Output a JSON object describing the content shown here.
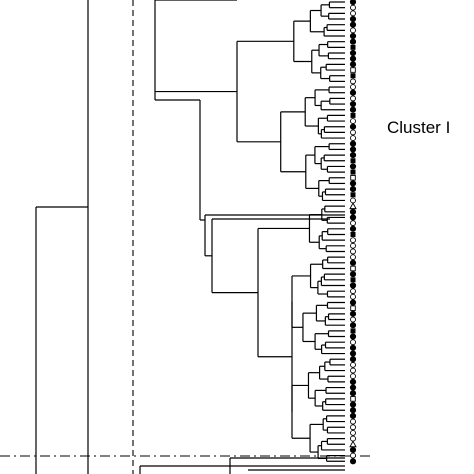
{
  "figure": {
    "type": "dendrogram",
    "cluster_label": "Cluster I",
    "leaf_markers": [
      "filled-circle",
      "open-circle",
      "open-circle",
      "filled-circle",
      "filled-circle",
      "open-circle",
      "filled-circle",
      "filled-circle",
      "filled-square",
      "filled-circle",
      "filled-circle",
      "filled-circle",
      "open-square",
      "filled-square",
      "open-circle",
      "open-circle",
      "filled-circle",
      "open-circle",
      "filled-circle",
      "filled-circle",
      "filled-square",
      "open-circle",
      "filled-circle",
      "open-circle",
      "open-circle",
      "filled-circle",
      "filled-circle",
      "filled-circle",
      "filled-square",
      "filled-circle",
      "filled-square",
      "open-square",
      "filled-circle",
      "filled-circle",
      "filled-square",
      "open-circle",
      "open-triangle",
      "filled-circle",
      "filled-circle",
      "open-circle",
      "filled-circle",
      "filled-square",
      "open-circle",
      "open-circle",
      "open-circle",
      "open-circle",
      "filled-circle",
      "open-square",
      "filled-circle",
      "filled-square",
      "filled-circle",
      "open-circle",
      "open-circle",
      "filled-circle",
      "open-square",
      "filled-circle",
      "open-circle",
      "filled-circle",
      "filled-square",
      "filled-circle",
      "open-circle",
      "filled-circle",
      "filled-circle",
      "filled-circle",
      "open-circle",
      "open-circle",
      "open-circle",
      "filled-circle",
      "filled-circle",
      "filled-circle",
      "open-square",
      "filled-circle",
      "filled-circle",
      "filled-circle",
      "open-circle",
      "open-circle",
      "open-circle",
      "open-circle",
      "open-triangle",
      "filled-circle",
      "open-circle",
      "filled-circle"
    ],
    "colors": {
      "line": "#000000",
      "background": "#ffffff"
    },
    "cut_lines": [
      "dashed-vertical",
      "dash-dot-horizontal"
    ]
  }
}
